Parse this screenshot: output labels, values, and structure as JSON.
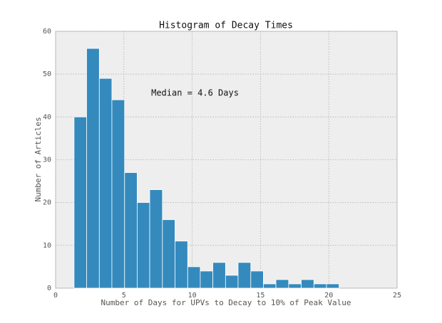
{
  "chart_data": {
    "type": "histogram",
    "title": "Histogram of Decay Times",
    "xlabel": "Number of Days for UPVs to Decay to 10% of Peak Value",
    "ylabel": "Number of Articles",
    "annotation": "Median = 4.6 Days",
    "bins": [
      1.35,
      2.27,
      3.2,
      4.12,
      5.05,
      5.97,
      6.89,
      7.82,
      8.74,
      9.67,
      10.59,
      11.51,
      12.44,
      13.36,
      14.29,
      15.21,
      16.13,
      17.06,
      17.98,
      18.91,
      19.83,
      20.75
    ],
    "values": [
      40,
      56,
      49,
      44,
      27,
      20,
      23,
      16,
      11,
      5,
      4,
      6,
      3,
      6,
      4,
      1,
      2,
      1,
      2,
      1,
      1
    ],
    "color": "#348abd",
    "xlim": [
      0,
      25
    ],
    "xticks": [
      0,
      5,
      10,
      15,
      20,
      25
    ],
    "ylim": [
      0,
      60
    ],
    "yticks": [
      0,
      10,
      20,
      30,
      40,
      50,
      60
    ],
    "grid": true
  }
}
